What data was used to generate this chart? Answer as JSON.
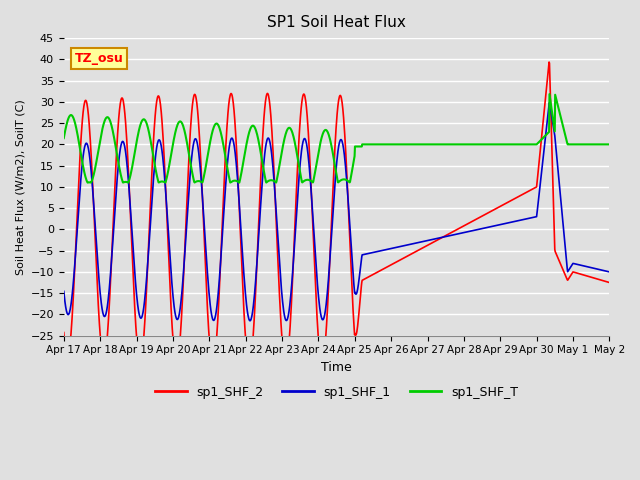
{
  "title": "SP1 Soil Heat Flux",
  "ylabel": "Soil Heat Flux (W/m2), SoilT (C)",
  "xlabel": "Time",
  "ylim": [
    -25,
    45
  ],
  "yticks": [
    -25,
    -20,
    -15,
    -10,
    -5,
    0,
    5,
    10,
    15,
    20,
    25,
    30,
    35,
    40,
    45
  ],
  "xtick_positions": [
    0,
    1,
    2,
    3,
    4,
    5,
    6,
    7,
    8,
    9,
    10,
    11,
    12,
    13,
    14,
    15
  ],
  "xtick_labels": [
    "Apr 17",
    "Apr 18",
    "Apr 19",
    "Apr 20",
    "Apr 21",
    "Apr 22",
    "Apr 23",
    "Apr 24",
    "Apr 25",
    "Apr 26",
    "Apr 27",
    "Apr 28",
    "Apr 29",
    "Apr 30",
    "May 1",
    "May 2"
  ],
  "background_color": "#e0e0e0",
  "plot_bg_color": "#e0e0e0",
  "grid_color": "white",
  "line_colors": {
    "shf2": "#ff0000",
    "shf1": "#0000cc",
    "shft": "#00cc00"
  },
  "legend_labels": [
    "sp1_SHF_2",
    "sp1_SHF_1",
    "sp1_SHF_T"
  ],
  "tz_label": "TZ_osu",
  "tz_bg": "#ffff99",
  "tz_border": "#cc8800"
}
